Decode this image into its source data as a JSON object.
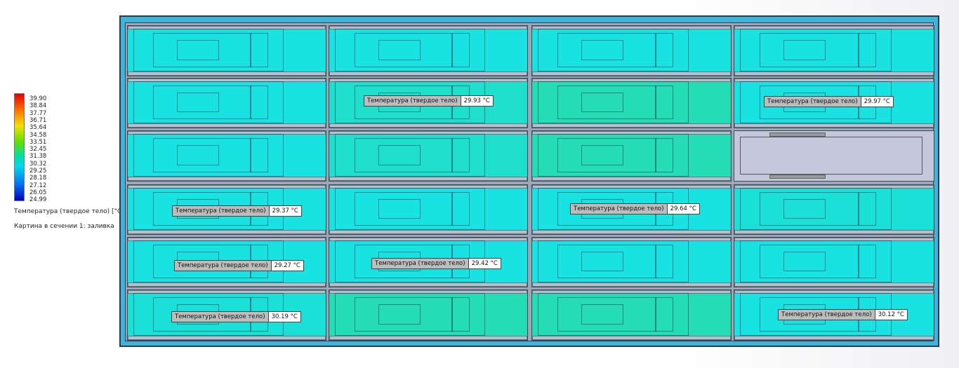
{
  "legend": {
    "ticks": [
      "39.90",
      "38.84",
      "37.77",
      "36.71",
      "35.64",
      "34.58",
      "33.51",
      "32.45",
      "31.38",
      "30.32",
      "29.25",
      "28.18",
      "27.12",
      "26.05",
      "24.99"
    ],
    "title": "Температура (твердое тело) [°C]",
    "subtitle": "Картина в сечении 1: заливка"
  },
  "probes": [
    {
      "label": "Температура (твердое тело)",
      "value": "29.93 °C"
    },
    {
      "label": "Температура (твердое тело)",
      "value": "29.97 °C"
    },
    {
      "label": "Температура (твердое тело)",
      "value": "29.37 °C"
    },
    {
      "label": "Температура (твердое тело)",
      "value": "29.64 °C"
    },
    {
      "label": "Температура (твердое тело)",
      "value": "29.27 °C"
    },
    {
      "label": "Температура (твердое тело)",
      "value": "29.42 °C"
    },
    {
      "label": "Температура (твердое тело)",
      "value": "30.19 °C"
    },
    {
      "label": "Температура (твердое тело)",
      "value": "30.12 °C"
    }
  ]
}
